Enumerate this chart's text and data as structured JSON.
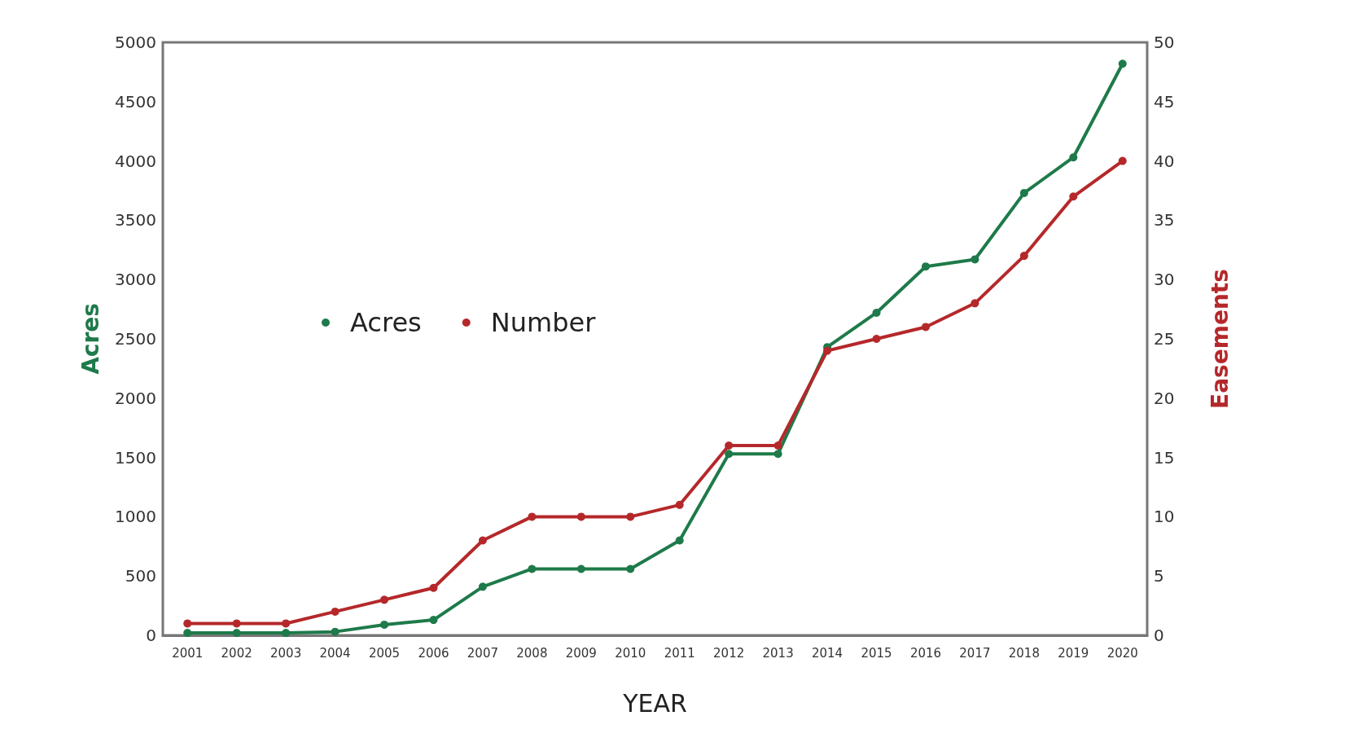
{
  "chart_data": {
    "type": "line",
    "xlabel": "YEAR",
    "ylabel": "Acres",
    "y2label": "Easements",
    "categories": [
      "2001",
      "2002",
      "2003",
      "2004",
      "2005",
      "2006",
      "2007",
      "2008",
      "2009",
      "2010",
      "2011",
      "2012",
      "2013",
      "2014",
      "2015",
      "2016",
      "2017",
      "2018",
      "2019",
      "2020"
    ],
    "series": [
      {
        "name": "Acres",
        "color": "#1e7a4a",
        "values": [
          20,
          20,
          20,
          30,
          90,
          130,
          410,
          560,
          560,
          560,
          800,
          1530,
          1530,
          2430,
          2720,
          3110,
          3170,
          3730,
          4030,
          4820
        ]
      },
      {
        "name": "Number",
        "color": "#b5282a",
        "axis": "y2",
        "values": [
          1,
          1,
          1,
          2,
          3,
          4,
          8,
          10,
          10,
          10,
          11,
          16,
          16,
          24,
          25,
          26,
          28,
          32,
          37,
          40
        ]
      }
    ],
    "ylim": [
      0,
      5000
    ],
    "yticks": [
      0,
      500,
      1000,
      1500,
      2000,
      2500,
      3000,
      3500,
      4000,
      4500,
      5000
    ],
    "y2lim": [
      0,
      50
    ],
    "y2ticks": [
      0,
      5,
      10,
      15,
      20,
      25,
      30,
      35,
      40,
      45,
      50
    ],
    "grid": false,
    "legend": "left",
    "marker": "circle",
    "line_style": "solid"
  }
}
